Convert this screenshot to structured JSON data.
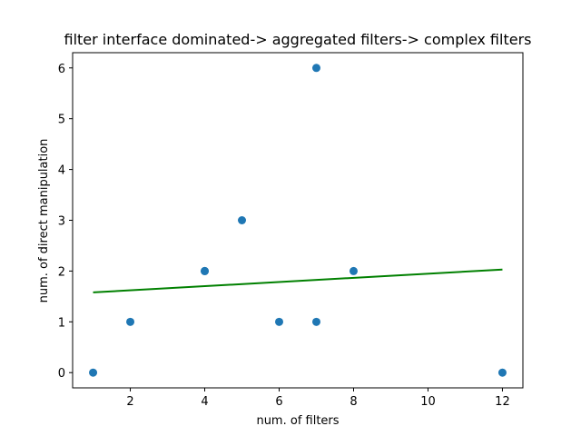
{
  "chart_data": {
    "type": "scatter",
    "title": "filter interface dominated-> aggregated filters-> complex filters",
    "xlabel": "num. of filters",
    "ylabel": "num. of direct manipulation",
    "xlim": [
      0.45,
      12.55
    ],
    "ylim": [
      -0.3,
      6.3
    ],
    "xticks": [
      2,
      4,
      6,
      8,
      10,
      12
    ],
    "yticks": [
      0,
      1,
      2,
      3,
      4,
      5,
      6
    ],
    "grid": false,
    "points": {
      "x": [
        1,
        2,
        4,
        4,
        5,
        6,
        7,
        7,
        8,
        12
      ],
      "y": [
        0,
        1,
        2,
        2,
        3,
        1,
        1,
        6,
        2,
        0
      ]
    },
    "trendline": {
      "type": "linear_fit",
      "x": [
        1,
        12
      ],
      "y": [
        1.58,
        2.03
      ]
    },
    "colors": {
      "points": "#1f77b4",
      "trendline": "#008000",
      "axes": "#000000"
    }
  }
}
